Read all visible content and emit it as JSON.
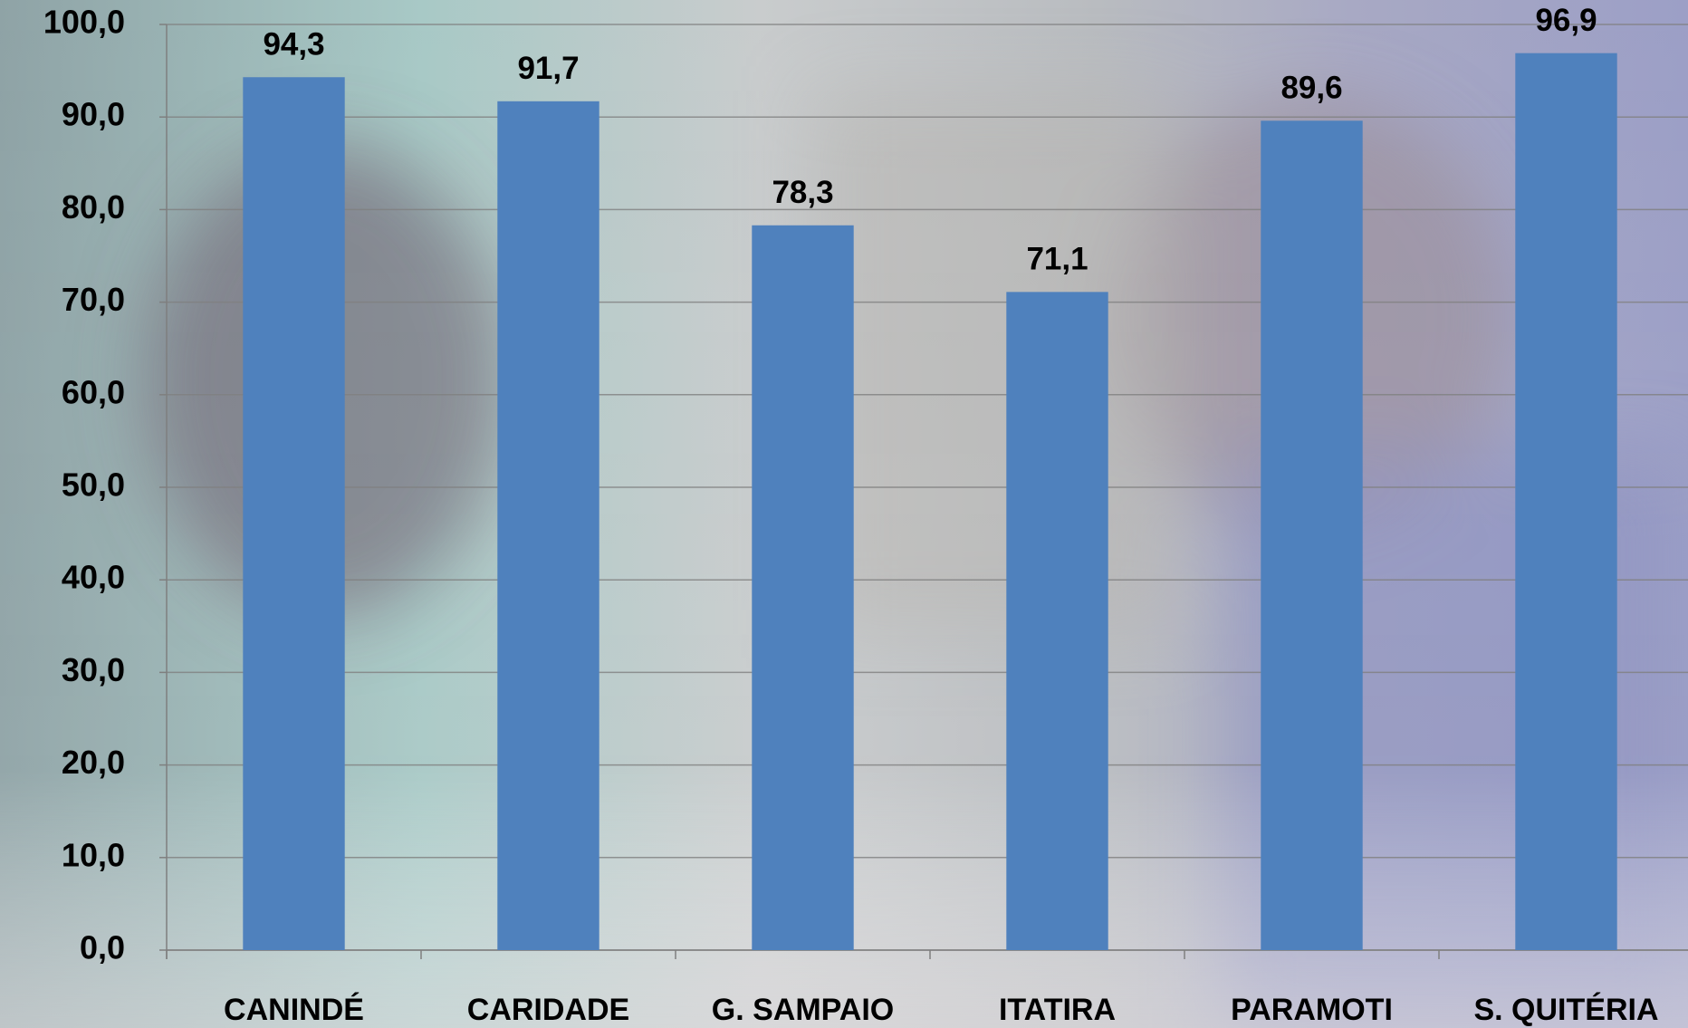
{
  "chart_data": {
    "type": "bar",
    "categories": [
      "CANINDÉ",
      "CARIDADE",
      "G. SAMPAIO",
      "ITATIRA",
      "PARAMOTI",
      "S. QUITÉRIA"
    ],
    "values": [
      94.3,
      91.7,
      78.3,
      71.1,
      89.6,
      96.9
    ],
    "value_labels": [
      "94,3",
      "91,7",
      "78,3",
      "71,1",
      "89,6",
      "96,9"
    ],
    "color": "#4f81bd",
    "ylim": [
      0,
      100
    ],
    "yticks": [
      {
        "value": 0,
        "label": "0,0"
      },
      {
        "value": 10,
        "label": "10,0"
      },
      {
        "value": 20,
        "label": "20,0"
      },
      {
        "value": 30,
        "label": "30,0"
      },
      {
        "value": 40,
        "label": "40,0"
      },
      {
        "value": 50,
        "label": "50,0"
      },
      {
        "value": 60,
        "label": "60,0"
      },
      {
        "value": 70,
        "label": "70,0"
      },
      {
        "value": 80,
        "label": "80,0"
      },
      {
        "value": 90,
        "label": "90,0"
      },
      {
        "value": 100,
        "label": "100,0"
      }
    ],
    "grid": true
  }
}
